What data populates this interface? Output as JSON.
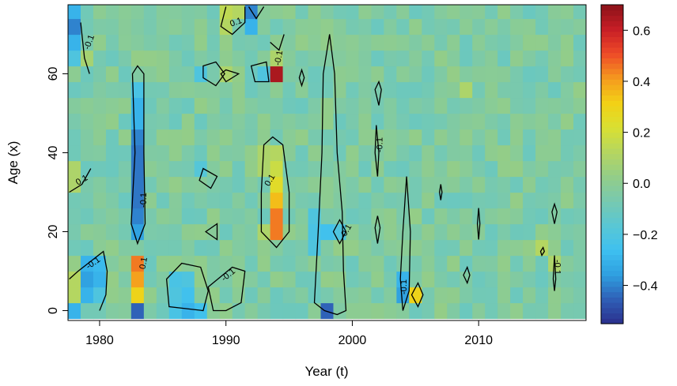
{
  "chart_data": {
    "type": "heatmap",
    "title": "",
    "xlabel": "Year (t)",
    "ylabel": "Age (x)",
    "xlim": [
      1977.5,
      2018.5
    ],
    "ylim": [
      -2.5,
      77.5
    ],
    "x_ticks": [
      1980,
      1990,
      2000,
      2010
    ],
    "y_ticks": [
      0,
      20,
      40,
      60
    ],
    "colorbar": {
      "range": [
        -0.55,
        0.7
      ],
      "ticks": [
        0.6,
        0.4,
        0.2,
        0.0,
        -0.2,
        -0.4
      ],
      "tick_labels": [
        "0.6",
        "0.4",
        "0.2",
        "0.0",
        "−0.2",
        "−0.4"
      ],
      "palette": [
        "#2b2f8c",
        "#2f5fb6",
        "#2f9fe0",
        "#3ec0f0",
        "#59c7d4",
        "#77c9b0",
        "#93cd88",
        "#b5d660",
        "#d9e032",
        "#f2d116",
        "#f59a1e",
        "#ee4b28",
        "#c81e26",
        "#8a1218"
      ]
    },
    "heatmap": {
      "year_start": 1978,
      "year_end": 2018,
      "age_bin_width": 4,
      "age_bin_centers": [
        0,
        4,
        8,
        12,
        16,
        20,
        24,
        28,
        32,
        36,
        40,
        44,
        48,
        52,
        56,
        60,
        64,
        68,
        72,
        76
      ],
      "background_value": -0.04,
      "cells": [
        {
          "year": 1978,
          "age": 76,
          "value": -0.3
        },
        {
          "year": 1978,
          "age": 72,
          "value": -0.4
        },
        {
          "year": 1978,
          "age": 68,
          "value": -0.3
        },
        {
          "year": 1978,
          "age": 64,
          "value": -0.2
        },
        {
          "year": 1978,
          "age": 36,
          "value": 0.1
        },
        {
          "year": 1978,
          "age": 32,
          "value": 0.1
        },
        {
          "year": 1978,
          "age": 8,
          "value": 0.12
        },
        {
          "year": 1978,
          "age": 4,
          "value": 0.12
        },
        {
          "year": 1978,
          "age": 0,
          "value": -0.3
        },
        {
          "year": 1979,
          "age": 12,
          "value": -0.3
        },
        {
          "year": 1979,
          "age": 8,
          "value": -0.35
        },
        {
          "year": 1979,
          "age": 4,
          "value": -0.3
        },
        {
          "year": 1979,
          "age": 64,
          "value": 0.08
        },
        {
          "year": 1980,
          "age": 12,
          "value": -0.28
        },
        {
          "year": 1980,
          "age": 8,
          "value": -0.3
        },
        {
          "year": 1980,
          "age": 4,
          "value": -0.2
        },
        {
          "year": 1983,
          "age": 56,
          "value": -0.22
        },
        {
          "year": 1983,
          "age": 52,
          "value": -0.3
        },
        {
          "year": 1983,
          "age": 48,
          "value": -0.3
        },
        {
          "year": 1983,
          "age": 44,
          "value": -0.4
        },
        {
          "year": 1983,
          "age": 40,
          "value": -0.42
        },
        {
          "year": 1983,
          "age": 36,
          "value": -0.42
        },
        {
          "year": 1983,
          "age": 32,
          "value": -0.42
        },
        {
          "year": 1983,
          "age": 28,
          "value": -0.42
        },
        {
          "year": 1983,
          "age": 24,
          "value": -0.4
        },
        {
          "year": 1983,
          "age": 20,
          "value": -0.35
        },
        {
          "year": 1983,
          "age": 12,
          "value": 0.45
        },
        {
          "year": 1983,
          "age": 8,
          "value": 0.4
        },
        {
          "year": 1983,
          "age": 4,
          "value": 0.3
        },
        {
          "year": 1983,
          "age": 0,
          "value": -0.45
        },
        {
          "year": 1986,
          "age": 8,
          "value": -0.22
        },
        {
          "year": 1986,
          "age": 4,
          "value": -0.2
        },
        {
          "year": 1986,
          "age": 0,
          "value": -0.22
        },
        {
          "year": 1987,
          "age": 8,
          "value": -0.2
        },
        {
          "year": 1987,
          "age": 4,
          "value": -0.25
        },
        {
          "year": 1987,
          "age": 0,
          "value": -0.3
        },
        {
          "year": 1988,
          "age": 0,
          "value": -0.25
        },
        {
          "year": 1988,
          "age": 60,
          "value": -0.2
        },
        {
          "year": 1988,
          "age": 36,
          "value": -0.18
        },
        {
          "year": 1990,
          "age": 76,
          "value": 0.15
        },
        {
          "year": 1990,
          "age": 72,
          "value": 0.12
        },
        {
          "year": 1990,
          "age": 60,
          "value": 0.1
        },
        {
          "year": 1991,
          "age": 76,
          "value": 0.12
        },
        {
          "year": 1992,
          "age": 76,
          "value": -0.4
        },
        {
          "year": 1992,
          "age": 72,
          "value": -0.3
        },
        {
          "year": 1993,
          "age": 60,
          "value": -0.2
        },
        {
          "year": 1993,
          "age": 40,
          "value": 0.1
        },
        {
          "year": 1993,
          "age": 36,
          "value": 0.1
        },
        {
          "year": 1993,
          "age": 20,
          "value": 0.1
        },
        {
          "year": 1994,
          "age": 64,
          "value": 0.1
        },
        {
          "year": 1994,
          "age": 60,
          "value": 0.65
        },
        {
          "year": 1994,
          "age": 40,
          "value": 0.12
        },
        {
          "year": 1994,
          "age": 36,
          "value": 0.18
        },
        {
          "year": 1994,
          "age": 32,
          "value": 0.25
        },
        {
          "year": 1994,
          "age": 28,
          "value": 0.35
        },
        {
          "year": 1994,
          "age": 24,
          "value": 0.45
        },
        {
          "year": 1994,
          "age": 20,
          "value": 0.45
        },
        {
          "year": 1997,
          "age": 24,
          "value": -0.2
        },
        {
          "year": 1997,
          "age": 20,
          "value": -0.22
        },
        {
          "year": 1997,
          "age": 16,
          "value": -0.2
        },
        {
          "year": 1998,
          "age": 20,
          "value": -0.25
        },
        {
          "year": 1998,
          "age": 0,
          "value": -0.45
        },
        {
          "year": 1999,
          "age": 20,
          "value": -0.2
        },
        {
          "year": 2004,
          "age": 8,
          "value": -0.3
        },
        {
          "year": 2004,
          "age": 4,
          "value": -0.35
        },
        {
          "year": 2005,
          "age": 4,
          "value": 0.3
        },
        {
          "year": 2009,
          "age": 56,
          "value": 0.1
        },
        {
          "year": 2015,
          "age": 16,
          "value": 0.12
        },
        {
          "year": 2016,
          "age": 12,
          "value": 0.1
        }
      ]
    },
    "contours": {
      "level_labels": [
        "-0.1",
        "0.1"
      ]
    }
  }
}
